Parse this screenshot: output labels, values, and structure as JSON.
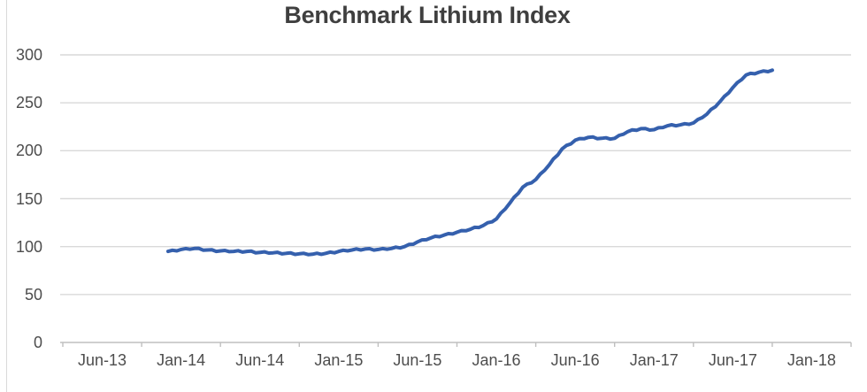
{
  "chart_data": {
    "type": "line",
    "title": "Benchmark Lithium Index",
    "xlabel": "",
    "ylabel": "",
    "ylim": [
      0,
      300
    ],
    "grid": true,
    "legend": "none",
    "y_ticks": [
      300,
      250,
      200,
      150,
      100,
      50,
      0
    ],
    "x_axis_labels": [
      "Jun-13",
      "Jan-14",
      "Jun-14",
      "Jan-15",
      "Jun-15",
      "Jan-16",
      "Jun-16",
      "Jan-17",
      "Jun-17",
      "Jan-18"
    ],
    "series": [
      {
        "name": "Benchmark Lithium Index",
        "x": [
          "Dec-13",
          "Jan-14",
          "Feb-14",
          "Mar-14",
          "Apr-14",
          "May-14",
          "Jun-14",
          "Jul-14",
          "Aug-14",
          "Sep-14",
          "Oct-14",
          "Nov-14",
          "Dec-14",
          "Jan-15",
          "Feb-15",
          "Mar-15",
          "Apr-15",
          "May-15",
          "Jun-15",
          "Jul-15",
          "Aug-15",
          "Sep-15",
          "Oct-15",
          "Nov-15",
          "Dec-15",
          "Jan-16",
          "Feb-16",
          "Mar-16",
          "Apr-16",
          "May-16",
          "Jun-16",
          "Jul-16",
          "Aug-16",
          "Sep-16",
          "Oct-16",
          "Nov-16",
          "Dec-16",
          "Jan-17",
          "Feb-17",
          "Mar-17",
          "Apr-17",
          "May-17",
          "Jun-17",
          "Jul-17",
          "Aug-17",
          "Sep-17",
          "Oct-17"
        ],
        "values": [
          95,
          97,
          98,
          96.5,
          95.5,
          95,
          95,
          94,
          93.5,
          93,
          92.5,
          92,
          93,
          95,
          96.5,
          97.5,
          97,
          98,
          100,
          105,
          109,
          112,
          115,
          118,
          122,
          129,
          145,
          162,
          170,
          185,
          202,
          211,
          214,
          213,
          213,
          220,
          223,
          222,
          226,
          227,
          229,
          238,
          251,
          266,
          279,
          282,
          284
        ]
      }
    ],
    "colors": {
      "line": "#3560AD",
      "gridline": "#d9d9d9",
      "axis": "#bfbfbf",
      "tick_label": "#4d4d4d",
      "title": "#3f3f3f"
    }
  }
}
